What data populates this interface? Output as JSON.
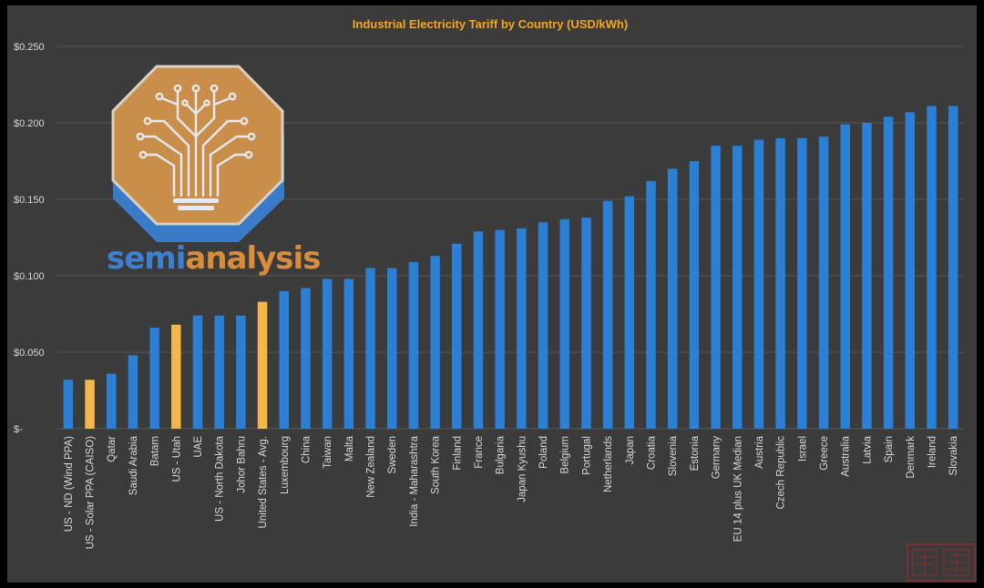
{
  "chart_data": {
    "type": "bar",
    "title": "Industrial Electricity Tariff by Country (USD/kWh)",
    "xlabel": "",
    "ylabel": "",
    "ylim": [
      0,
      0.25
    ],
    "yticks": [
      {
        "value": 0,
        "label": "$-"
      },
      {
        "value": 0.05,
        "label": "$0.050"
      },
      {
        "value": 0.1,
        "label": "$0.100"
      },
      {
        "value": 0.15,
        "label": "$0.150"
      },
      {
        "value": 0.2,
        "label": "$0.200"
      },
      {
        "value": 0.25,
        "label": "$0.250"
      }
    ],
    "grid": true,
    "categories": [
      "US - ND (Wind PPA)",
      "US - Solar PPA (CAISO)",
      "Qatar",
      "Saudi Arabia",
      "Batam",
      "US - Utah",
      "UAE",
      "US - North Dakota",
      "Johor Bahru",
      "United States - Avg.",
      "Luxembourg",
      "China",
      "Taiwan",
      "Malta",
      "New Zealand",
      "Sweden",
      "India - Maharashtra",
      "South Korea",
      "Finland",
      "France",
      "Bulgaria",
      "Japan Kyushu",
      "Poland",
      "Belgium",
      "Portugal",
      "Netherlands",
      "Japan",
      "Croatia",
      "Slovenia",
      "Estonia",
      "Germany",
      "EU 14 plus UK Median",
      "Austria",
      "Czech Republic",
      "Israel",
      "Greece",
      "Australia",
      "Latvia",
      "Spain",
      "Denmark",
      "Ireland",
      "Slovakia"
    ],
    "values": [
      0.032,
      0.032,
      0.036,
      0.048,
      0.066,
      0.068,
      0.074,
      0.074,
      0.074,
      0.083,
      0.09,
      0.092,
      0.098,
      0.098,
      0.105,
      0.105,
      0.109,
      0.113,
      0.121,
      0.129,
      0.13,
      0.131,
      0.135,
      0.137,
      0.138,
      0.149,
      0.152,
      0.162,
      0.17,
      0.175,
      0.185,
      0.185,
      0.189,
      0.19,
      0.19,
      0.191,
      0.199,
      0.2,
      0.204,
      0.207,
      0.211,
      0.211
    ],
    "highlighted": [
      "US - Solar PPA (CAISO)",
      "US - Utah",
      "United States - Avg."
    ],
    "colors": {
      "default_bar": "#2b7fd4",
      "highlight_bar": "#f5b74a",
      "title": "#f5a623"
    }
  },
  "logo": {
    "text_left": "semi",
    "text_right": "analysis",
    "colors": {
      "badge_fill": "#c98f4a",
      "badge_border": "#d9d0c4",
      "badge_shadow": "#3a7bc8",
      "circuit": "#e8e8f0",
      "text_blue": "#3d7fd0",
      "text_orange": "#d98c3a"
    }
  }
}
